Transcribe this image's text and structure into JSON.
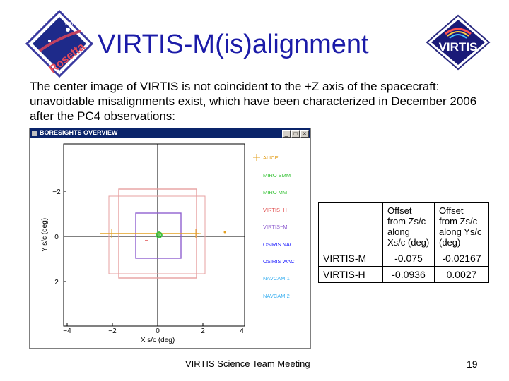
{
  "title": "VIRTIS-M(is)alignment",
  "intro": "The center image of VIRTIS is not coincident to the +Z axis of the spacecraft: unavoidable misalignments exist, which have been characterized in December 2006 after the PC4 observations:",
  "logos": {
    "left_text": "Rosetta",
    "left_sub": "esa",
    "right_text": "VIRTIS"
  },
  "window": {
    "title": "BORESIGHTS OVERVIEW",
    "buttons": [
      "_",
      "□",
      "×"
    ]
  },
  "plot": {
    "xlabel": "X s/c (deg)",
    "ylabel": "Y s/c (deg)",
    "xticks": [
      "−4",
      "−2",
      "0",
      "2",
      "4"
    ],
    "yticks": [
      "−2",
      "0",
      "2"
    ],
    "legend": [
      {
        "label": "ALICE",
        "color": "#e3a020"
      },
      {
        "label": "MIRO SMM",
        "color": "#30c030"
      },
      {
        "label": "MIRO MM",
        "color": "#30c030"
      },
      {
        "label": "VIRTIS−H",
        "color": "#e05050"
      },
      {
        "label": "VIRTIS−M",
        "color": "#9060d0"
      },
      {
        "label": "OSIRIS NAC",
        "color": "#2020ff"
      },
      {
        "label": "OSIRIS WAC",
        "color": "#2020ff"
      },
      {
        "label": "NAVCAM 1",
        "color": "#3cb0f0"
      },
      {
        "label": "NAVCAM 2",
        "color": "#3cb0f0"
      }
    ]
  },
  "table": {
    "header_m": "Offset from Zs/c along Xs/c (deg)",
    "header_h": "Offset from Zs/c along Ys/c (deg)",
    "rows": [
      {
        "label": "VIRTIS-M",
        "x": "-0.075",
        "y": "-0.02167"
      },
      {
        "label": "VIRTIS-H",
        "x": "-0.0936",
        "y": "0.0027"
      }
    ]
  },
  "footer": "VIRTIS Science Team Meeting",
  "page_number": "19"
}
